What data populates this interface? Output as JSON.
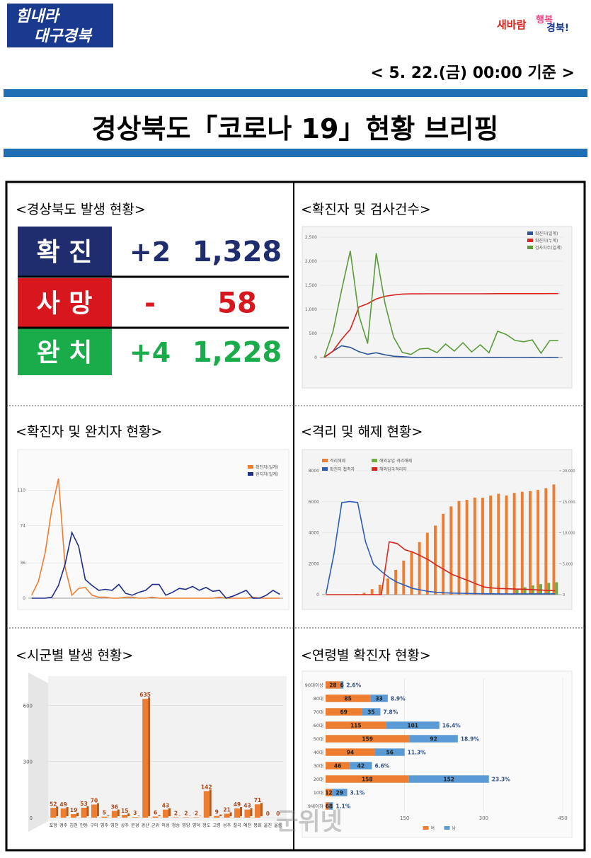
{
  "header": {
    "logo": [
      "힘내라",
      "대구경북"
    ],
    "slogan": [
      "새바람",
      "행복",
      "경북!"
    ],
    "date": "< 5. 22.(금) 00:00 기준 >",
    "title": "경상북도「코로나 19」현황 브리핑"
  },
  "panels": [
    "<경상북도 발생 현황>",
    "<확진자 및 검사건수>",
    "<확진자 및 완치자 현황>",
    "<격리 및 해제 현황>",
    "<시군별 발생 현황>",
    "<연령별 확진자 현황>"
  ],
  "status": {
    "rows": [
      {
        "label": "확 진",
        "change": "+2",
        "total": "1,328"
      },
      {
        "label": "사 망",
        "change": "-",
        "total": "58"
      },
      {
        "label": "완 치",
        "change": "+4",
        "total": "1,228"
      }
    ]
  },
  "watermark": "군위넷",
  "chart_data": [
    {
      "type": "line",
      "legend": "top-right",
      "categories": [
        null,
        null,
        null,
        null,
        null,
        null,
        null,
        null,
        null,
        null,
        null,
        null,
        null,
        null,
        null,
        null,
        null,
        null,
        null,
        null,
        null,
        null,
        null,
        null,
        null,
        null,
        null,
        null
      ],
      "ylim": [
        0,
        2500
      ],
      "yticks": [
        0,
        {
          "value": 500,
          "label": "500"
        },
        {
          "value": 1000,
          "label": "1,000"
        },
        {
          "value": 1500,
          "label": "1,500"
        },
        {
          "value": 2000,
          "label": "2,000"
        },
        {
          "value": 2500,
          "label": "2,500"
        }
      ],
      "series": [
        {
          "name": "확진자(일계)",
          "color": "#2e5597",
          "values": [
            3,
            130,
            243,
            210,
            122,
            68,
            99,
            56,
            27,
            18,
            5,
            0,
            1,
            0,
            1,
            0,
            0,
            0,
            0,
            1,
            1,
            0,
            0,
            0,
            1,
            0,
            1,
            0
          ]
        },
        {
          "name": "확진자(누계)",
          "color": "#d7261e",
          "values": [
            3,
            133,
            376,
            586,
            1049,
            1117,
            1216,
            1272,
            1299,
            1317,
            1322,
            1322,
            1323,
            1323,
            1324,
            1324,
            1324,
            1324,
            1324,
            1325,
            1326,
            1326,
            1326,
            1326,
            1327,
            1327,
            1328,
            1328
          ]
        },
        {
          "name": "검사자수(일계)",
          "color": "#5b9b3a",
          "values": [
            12,
            534,
            1397,
            2216,
            876,
            288,
            2167,
            1126,
            424,
            106,
            63,
            176,
            190,
            100,
            280,
            134,
            307,
            114,
            264,
            100,
            547,
            477,
            354,
            327,
            364,
            88,
            348,
            353
          ]
        }
      ]
    },
    {
      "type": "line",
      "legend": "top-right",
      "categories": [
        null,
        null,
        null,
        null,
        null,
        null,
        null,
        null,
        null,
        null,
        null,
        null,
        null,
        null,
        null,
        null,
        null,
        null,
        null,
        null,
        null,
        null,
        null,
        null,
        null,
        null,
        null,
        null,
        null,
        null,
        null,
        null,
        null,
        null,
        null,
        null,
        null,
        null
      ],
      "ylim": [
        0,
        130
      ],
      "yticks": [
        0,
        36,
        74,
        110
      ],
      "series": [
        {
          "name": "확진자(일계)",
          "color": "#ed7d31",
          "values": [
            3,
            17,
            46,
            91,
            122,
            31,
            3,
            10,
            11,
            3,
            1,
            1,
            0,
            0,
            1,
            1,
            0,
            0,
            1,
            0,
            0,
            0,
            0,
            0,
            0,
            0,
            0,
            0,
            1,
            0,
            0,
            0,
            0,
            1,
            0,
            0,
            0,
            0
          ]
        },
        {
          "name": "완치자(일계)",
          "color": "#1f2d8a",
          "values": [
            0,
            0,
            0,
            1,
            13,
            35,
            67,
            53,
            19,
            13,
            8,
            9,
            8,
            14,
            5,
            3,
            6,
            8,
            14,
            14,
            3,
            6,
            10,
            9,
            12,
            8,
            11,
            7,
            8,
            0,
            2,
            5,
            8,
            0,
            0,
            3,
            8,
            4
          ]
        }
      ]
    },
    {
      "type": "combo",
      "legend": "top-left",
      "categories": [
        null,
        null,
        null,
        null,
        null,
        null,
        null,
        null,
        null,
        null,
        null,
        null,
        null,
        null,
        null,
        null,
        null,
        null,
        null,
        null,
        null,
        null,
        null,
        null,
        null,
        null,
        null,
        null,
        null,
        null
      ],
      "ylim": [
        0,
        8000
      ],
      "yticks": [
        0,
        2000,
        4000,
        6000,
        8000
      ],
      "y2lim": [
        0,
        20000
      ],
      "y2ticks": [
        0,
        {
          "value": 5000,
          "label": "5,000"
        },
        {
          "value": 10000,
          "label": "10,000"
        },
        {
          "value": 15000,
          "label": "15,000"
        },
        {
          "value": 20000,
          "label": "20,000"
        }
      ],
      "series": [
        {
          "name": "격리해제",
          "kind": "bar",
          "axis": "y2",
          "color": "#ed7d31",
          "values": [
            0,
            0,
            0,
            20,
            100,
            300,
            900,
            1600,
            2600,
            4000,
            5500,
            7000,
            8500,
            9993,
            11153,
            13051,
            14244,
            15124,
            15311,
            15673,
            15649,
            16003,
            16283,
            16014,
            16424,
            16611,
            16729,
            16908,
            17200,
            17791
          ]
        },
        {
          "name": "해외유입 격리해제",
          "kind": "bar",
          "axis": "y2",
          "color": "#70ad47",
          "values": [
            0,
            0,
            0,
            0,
            0,
            0,
            0,
            0,
            0,
            0,
            0,
            0,
            0,
            0,
            0,
            0,
            0,
            0,
            0,
            0,
            0,
            0,
            0,
            0,
            800,
            1200,
            1500,
            1700,
            1900,
            2000
          ]
        },
        {
          "name": "확진자 접촉자",
          "kind": "line",
          "color": "#2e5cb8",
          "values": [
            49,
            2620,
            5942,
            6015,
            5950,
            3424,
            1967,
            1500,
            1100,
            800,
            600,
            400,
            300,
            200,
            150,
            120,
            100,
            90,
            80,
            70,
            60,
            55,
            50,
            50,
            49,
            49,
            49,
            49,
            49,
            49
          ]
        },
        {
          "name": "해외입국격리자",
          "kind": "line",
          "color": "#d7261e",
          "values": [
            0,
            0,
            0,
            0,
            0,
            0,
            0,
            0,
            3417,
            3300,
            2900,
            2743,
            2500,
            2240,
            1900,
            1600,
            1300,
            1100,
            900,
            700,
            500,
            430,
            400,
            380,
            360,
            350,
            330,
            300,
            280,
            250
          ]
        }
      ]
    },
    {
      "type": "bar",
      "color": "#ed7d31",
      "categories": [
        "포항",
        "경주",
        "김천",
        "안동",
        "구미",
        "영주",
        "영천",
        "상주",
        "문경",
        "경산",
        "군위",
        "의성",
        "청송",
        "영양",
        "영덕",
        "청도",
        "고령",
        "성주",
        "칠곡",
        "예천",
        "봉화",
        "울진",
        "울릉"
      ],
      "values": [
        52,
        49,
        19,
        53,
        70,
        5,
        36,
        15,
        3,
        635,
        6,
        43,
        2,
        2,
        2,
        142,
        9,
        21,
        49,
        43,
        71,
        0,
        0
      ],
      "ylim": [
        0,
        700
      ],
      "yticks": [
        0,
        300,
        600
      ]
    },
    {
      "type": "bar",
      "horizontal": true,
      "stacked": true,
      "legend": "bottom",
      "categories": [
        "90대이상",
        "80대",
        "70대",
        "60대",
        "50대",
        "40대",
        "30대",
        "20대",
        "10대",
        "9세이하"
      ],
      "series": [
        {
          "name": "여",
          "color": "#ed7d31",
          "values": [
            28,
            85,
            69,
            115,
            159,
            94,
            46,
            158,
            12,
            6
          ]
        },
        {
          "name": "남",
          "color": "#5b9bd5",
          "values": [
            6,
            33,
            35,
            101,
            92,
            56,
            42,
            152,
            29,
            8
          ]
        }
      ],
      "share_labels": [
        "2.6%",
        "8.9%",
        "7.8%",
        "16.4%",
        "18.9%",
        "11.3%",
        "6.6%",
        "23.3%",
        "3.1%",
        "1.1%"
      ],
      "xlim": [
        0,
        450
      ],
      "xticks": [
        150,
        300,
        450
      ]
    }
  ]
}
